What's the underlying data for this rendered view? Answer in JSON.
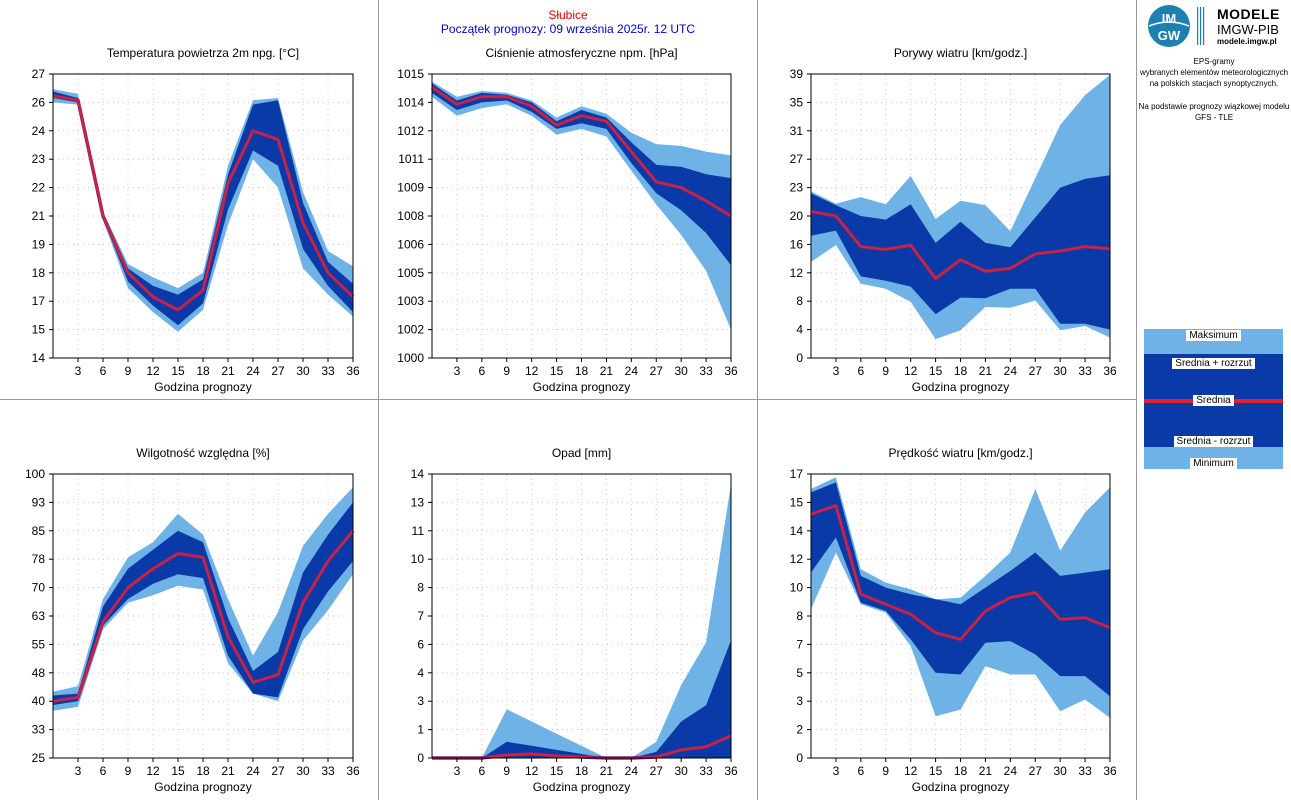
{
  "header": {
    "station": "Słubice",
    "subtitle": "Początek prognozy: 09 września 2025r. 12 UTC"
  },
  "sidebar": {
    "logo": {
      "title": "MODELE",
      "subtitle": "IMGW-PIB",
      "url": "modele.imgw.pl",
      "badge_top": "IM",
      "badge_bottom": "GW"
    },
    "description": [
      "EPS-gramy",
      "wybranych elementów meteorologicznych",
      "na polskich stacjach  synoptycznych.",
      "",
      "Na podstawie prognozy wiązkowej modelu",
      "GFS - TLE"
    ],
    "legend": {
      "max": "Maksimum",
      "mean_plus": "Średnia + rozrzut",
      "mean": "Średnia",
      "mean_minus": "Średnia - rozrzut",
      "min": "Minimum"
    }
  },
  "colors": {
    "outer_band": "#6fb3e6",
    "inner_band": "#0a3aa8",
    "mean_line": "#e0202a",
    "mean_line_outline": "#7a2a80",
    "grid": "#c8c8c8",
    "frame": "#999999",
    "subtitle": "#0000cc",
    "station": "#e00000"
  },
  "chart_data": [
    {
      "id": "temp",
      "type": "area",
      "title": "Temperatura powietrza 2m npg. [°C]",
      "xlabel": "Godzina prognozy",
      "x": [
        0,
        3,
        6,
        9,
        12,
        15,
        18,
        21,
        24,
        27,
        30,
        33,
        36
      ],
      "x_ticks": [
        3,
        6,
        9,
        12,
        15,
        18,
        21,
        24,
        27,
        30,
        33,
        36
      ],
      "ylim": [
        14,
        27
      ],
      "y_ticks": [
        "14",
        "15",
        "17",
        "18",
        "19",
        "21",
        "22",
        "23",
        "24",
        "26",
        "27"
      ],
      "y_tick_values": [
        14,
        15.3,
        16.6,
        17.9,
        19.2,
        20.5,
        21.8,
        23.1,
        24.4,
        25.7,
        27
      ],
      "grid": true,
      "series": [
        {
          "name": "Maksimum",
          "values": [
            26.3,
            26.1,
            20.7,
            18.3,
            17.7,
            17.2,
            17.9,
            22.8,
            25.8,
            25.9,
            21.6,
            18.9,
            18.2
          ]
        },
        {
          "name": "Średnia + rozrzut",
          "values": [
            26.2,
            25.9,
            20.6,
            18.1,
            17.3,
            16.9,
            17.6,
            22.4,
            25.6,
            25.8,
            21.1,
            18.4,
            17.4
          ]
        },
        {
          "name": "Średnia",
          "values": [
            26.0,
            25.8,
            20.5,
            17.9,
            16.8,
            16.2,
            17.1,
            22.0,
            24.4,
            24.0,
            20.2,
            17.9,
            16.8
          ]
        },
        {
          "name": "Średnia - rozrzut",
          "values": [
            25.9,
            25.7,
            20.4,
            17.5,
            16.4,
            15.5,
            16.5,
            20.8,
            23.5,
            22.8,
            19.0,
            17.3,
            16.1
          ]
        },
        {
          "name": "Minimum",
          "values": [
            25.7,
            25.6,
            20.3,
            17.2,
            16.1,
            15.2,
            16.2,
            20.1,
            23.1,
            21.8,
            18.1,
            16.9,
            15.9
          ]
        }
      ]
    },
    {
      "id": "pressure",
      "type": "area",
      "title": "Ciśnienie atmosferyczne npm. [hPa]",
      "xlabel": "Godzina prognozy",
      "x": [
        0,
        3,
        6,
        9,
        12,
        15,
        18,
        21,
        24,
        27,
        30,
        33,
        36
      ],
      "x_ticks": [
        3,
        6,
        9,
        12,
        15,
        18,
        21,
        24,
        27,
        30,
        33,
        36
      ],
      "ylim": [
        1000,
        1015
      ],
      "y_ticks": [
        "1000",
        "1002",
        "1003",
        "1005",
        "1006",
        "1008",
        "1009",
        "1011",
        "1012",
        "1014",
        "1015"
      ],
      "y_tick_values": [
        1000,
        1001.5,
        1003,
        1004.5,
        1006,
        1007.5,
        1009,
        1010.5,
        1012,
        1013.5,
        1015
      ],
      "grid": true,
      "series": [
        {
          "name": "Maksimum",
          "values": [
            1014.6,
            1013.8,
            1014.1,
            1014.0,
            1013.6,
            1012.7,
            1013.3,
            1012.9,
            1011.9,
            1011.3,
            1011.2,
            1010.9,
            1010.7
          ]
        },
        {
          "name": "Średnia + rozrzut",
          "values": [
            1014.5,
            1013.6,
            1014.0,
            1013.9,
            1013.5,
            1012.5,
            1013.1,
            1012.7,
            1011.4,
            1010.2,
            1010.1,
            1009.7,
            1009.5
          ]
        },
        {
          "name": "Średnia",
          "values": [
            1014.3,
            1013.4,
            1013.8,
            1013.8,
            1013.3,
            1012.3,
            1012.8,
            1012.5,
            1010.9,
            1009.3,
            1009.0,
            1008.3,
            1007.5
          ]
        },
        {
          "name": "Średnia - rozrzut",
          "values": [
            1014.0,
            1013.1,
            1013.5,
            1013.6,
            1013.0,
            1012.1,
            1012.4,
            1012.1,
            1010.3,
            1008.7,
            1007.8,
            1006.6,
            1004.9
          ]
        },
        {
          "name": "Minimum",
          "values": [
            1013.8,
            1012.8,
            1013.2,
            1013.4,
            1012.8,
            1011.8,
            1012.1,
            1011.7,
            1009.9,
            1008.1,
            1006.5,
            1004.6,
            1001.5
          ]
        }
      ]
    },
    {
      "id": "gusts",
      "type": "area",
      "title": "Porywy wiatru [km/godz.]",
      "xlabel": "Godzina prognozy",
      "x": [
        0,
        3,
        6,
        9,
        12,
        15,
        18,
        21,
        24,
        27,
        30,
        33,
        36
      ],
      "x_ticks": [
        3,
        6,
        9,
        12,
        15,
        18,
        21,
        24,
        27,
        30,
        33,
        36
      ],
      "ylim": [
        0,
        39
      ],
      "y_ticks": [
        "0",
        "4",
        "8",
        "12",
        "16",
        "20",
        "23",
        "27",
        "31",
        "35",
        "39"
      ],
      "y_tick_values": [
        0,
        3.9,
        7.8,
        11.7,
        15.6,
        19.5,
        23.4,
        27.3,
        31.2,
        35.1,
        39
      ],
      "grid": true,
      "series": [
        {
          "name": "Maksimum",
          "values": [
            22.9,
            21.2,
            22.1,
            21.1,
            25.0,
            19.1,
            21.6,
            21.0,
            17.4,
            24.7,
            32.0,
            36.1,
            38.9
          ]
        },
        {
          "name": "Średnia + rozrzut",
          "values": [
            22.6,
            21.0,
            19.5,
            19.0,
            21.1,
            15.8,
            18.7,
            15.8,
            15.2,
            19.3,
            23.4,
            24.6,
            25.1
          ]
        },
        {
          "name": "Średnia",
          "values": [
            20.1,
            19.5,
            15.3,
            14.9,
            15.5,
            10.9,
            13.5,
            11.9,
            12.3,
            14.3,
            14.7,
            15.3,
            15.0
          ]
        },
        {
          "name": "Średnia - rozrzut",
          "values": [
            16.8,
            17.5,
            11.2,
            10.6,
            9.8,
            6.0,
            8.3,
            8.2,
            9.5,
            9.5,
            4.7,
            4.7,
            3.9
          ]
        },
        {
          "name": "Minimum",
          "values": [
            13.2,
            15.5,
            10.2,
            9.5,
            7.7,
            2.6,
            3.8,
            7.0,
            6.9,
            7.9,
            3.8,
            4.4,
            2.8
          ]
        }
      ]
    },
    {
      "id": "humidity",
      "type": "area",
      "title": "Wilgotność względna [%]",
      "xlabel": "Godzina prognozy",
      "x": [
        0,
        3,
        6,
        9,
        12,
        15,
        18,
        21,
        24,
        27,
        30,
        33,
        36
      ],
      "x_ticks": [
        3,
        6,
        9,
        12,
        15,
        18,
        21,
        24,
        27,
        30,
        33,
        36
      ],
      "ylim": [
        25,
        100
      ],
      "y_ticks": [
        "25",
        "33",
        "40",
        "48",
        "55",
        "63",
        "70",
        "78",
        "85",
        "93",
        "100"
      ],
      "y_tick_values": [
        25,
        32.5,
        40,
        47.5,
        55,
        62.5,
        70,
        77.5,
        85,
        92.5,
        100
      ],
      "grid": true,
      "series": [
        {
          "name": "Maksimum",
          "values": [
            42.5,
            44,
            67,
            78,
            82,
            89.5,
            84,
            67,
            52,
            63.5,
            81,
            89.5,
            96.5
          ]
        },
        {
          "name": "Średnia + rozrzut",
          "values": [
            41.5,
            42,
            65,
            75,
            80,
            85,
            82,
            62,
            48,
            53,
            74,
            84,
            92.5
          ]
        },
        {
          "name": "Średnia",
          "values": [
            40,
            41,
            61,
            70,
            75,
            79,
            78,
            57,
            45,
            47,
            66,
            77,
            85
          ]
        },
        {
          "name": "Średnia - rozrzut",
          "values": [
            39,
            40,
            60,
            67,
            71,
            73.5,
            72.5,
            52,
            42,
            41,
            59,
            69,
            77
          ]
        },
        {
          "name": "Minimum",
          "values": [
            37.5,
            38.5,
            59,
            66,
            68,
            70.5,
            69.5,
            50,
            42,
            40,
            56,
            64,
            73.5
          ]
        }
      ]
    },
    {
      "id": "precip",
      "type": "area",
      "title": "Opad [mm]",
      "xlabel": "Godzina prognozy",
      "x": [
        0,
        3,
        6,
        9,
        12,
        15,
        18,
        21,
        24,
        27,
        30,
        33,
        36
      ],
      "x_ticks": [
        3,
        6,
        9,
        12,
        15,
        18,
        21,
        24,
        27,
        30,
        33,
        36
      ],
      "ylim": [
        0,
        14
      ],
      "y_ticks": [
        "0",
        "1",
        "3",
        "4",
        "6",
        "7",
        "8",
        "10",
        "11",
        "13",
        "14"
      ],
      "y_tick_values": [
        0,
        1.4,
        2.8,
        4.2,
        5.6,
        7,
        8.4,
        9.8,
        11.2,
        12.6,
        14
      ],
      "grid": true,
      "series": [
        {
          "name": "Maksimum",
          "values": [
            0,
            0,
            0,
            2.4,
            1.8,
            1.2,
            0.6,
            0,
            0,
            0.8,
            3.6,
            5.7,
            13.5
          ]
        },
        {
          "name": "Średnia + rozrzut",
          "values": [
            0,
            0,
            0,
            0.8,
            0.6,
            0.4,
            0.2,
            0,
            0,
            0.3,
            1.8,
            2.6,
            5.8
          ]
        },
        {
          "name": "Średnia",
          "values": [
            0,
            0,
            0,
            0.15,
            0.2,
            0.1,
            0.05,
            0,
            0,
            0.05,
            0.4,
            0.55,
            1.1
          ]
        },
        {
          "name": "Średnia - rozrzut",
          "values": [
            0,
            0,
            0,
            0,
            0,
            0,
            0,
            0,
            0,
            0,
            0,
            0,
            0
          ]
        },
        {
          "name": "Minimum",
          "values": [
            0,
            0,
            0,
            0,
            0,
            0,
            0,
            0,
            0,
            0,
            0,
            0,
            0
          ]
        }
      ]
    },
    {
      "id": "wind",
      "type": "area",
      "title": "Prędkość wiatru [km/godz.]",
      "xlabel": "Godzina prognozy",
      "x": [
        0,
        3,
        6,
        9,
        12,
        15,
        18,
        21,
        24,
        27,
        30,
        33,
        36
      ],
      "x_ticks": [
        3,
        6,
        9,
        12,
        15,
        18,
        21,
        24,
        27,
        30,
        33,
        36
      ],
      "ylim": [
        0,
        17
      ],
      "y_ticks": [
        "0",
        "2",
        "3",
        "5",
        "7",
        "8",
        "10",
        "12",
        "14",
        "15",
        "17"
      ],
      "y_tick_values": [
        0,
        1.7,
        3.4,
        5.1,
        6.8,
        8.5,
        10.2,
        11.9,
        13.6,
        15.3,
        17
      ],
      "grid": true,
      "series": [
        {
          "name": "Maksimum",
          "values": [
            16.1,
            16.8,
            11.3,
            10.5,
            10.1,
            9.5,
            9.6,
            10.9,
            12.3,
            16.1,
            12.4,
            14.7,
            16.2
          ]
        },
        {
          "name": "Średnia + rozrzut",
          "values": [
            15.9,
            16.5,
            10.9,
            10.2,
            9.8,
            9.5,
            9.2,
            10.2,
            11.2,
            12.3,
            10.9,
            11.1,
            11.3
          ]
        },
        {
          "name": "Średnia",
          "values": [
            14.6,
            15.1,
            9.8,
            9.2,
            8.6,
            7.5,
            7.1,
            8.8,
            9.6,
            9.9,
            8.3,
            8.4,
            7.8
          ]
        },
        {
          "name": "Średnia - rozrzut",
          "values": [
            11.1,
            13.2,
            9.3,
            8.8,
            7.1,
            5.1,
            5.0,
            6.9,
            7.0,
            6.2,
            4.9,
            4.9,
            3.7
          ]
        },
        {
          "name": "Minimum",
          "values": [
            8.9,
            12.3,
            9.2,
            8.7,
            6.7,
            2.5,
            2.9,
            5.5,
            5.0,
            5.0,
            2.8,
            3.5,
            2.4
          ]
        }
      ]
    }
  ]
}
